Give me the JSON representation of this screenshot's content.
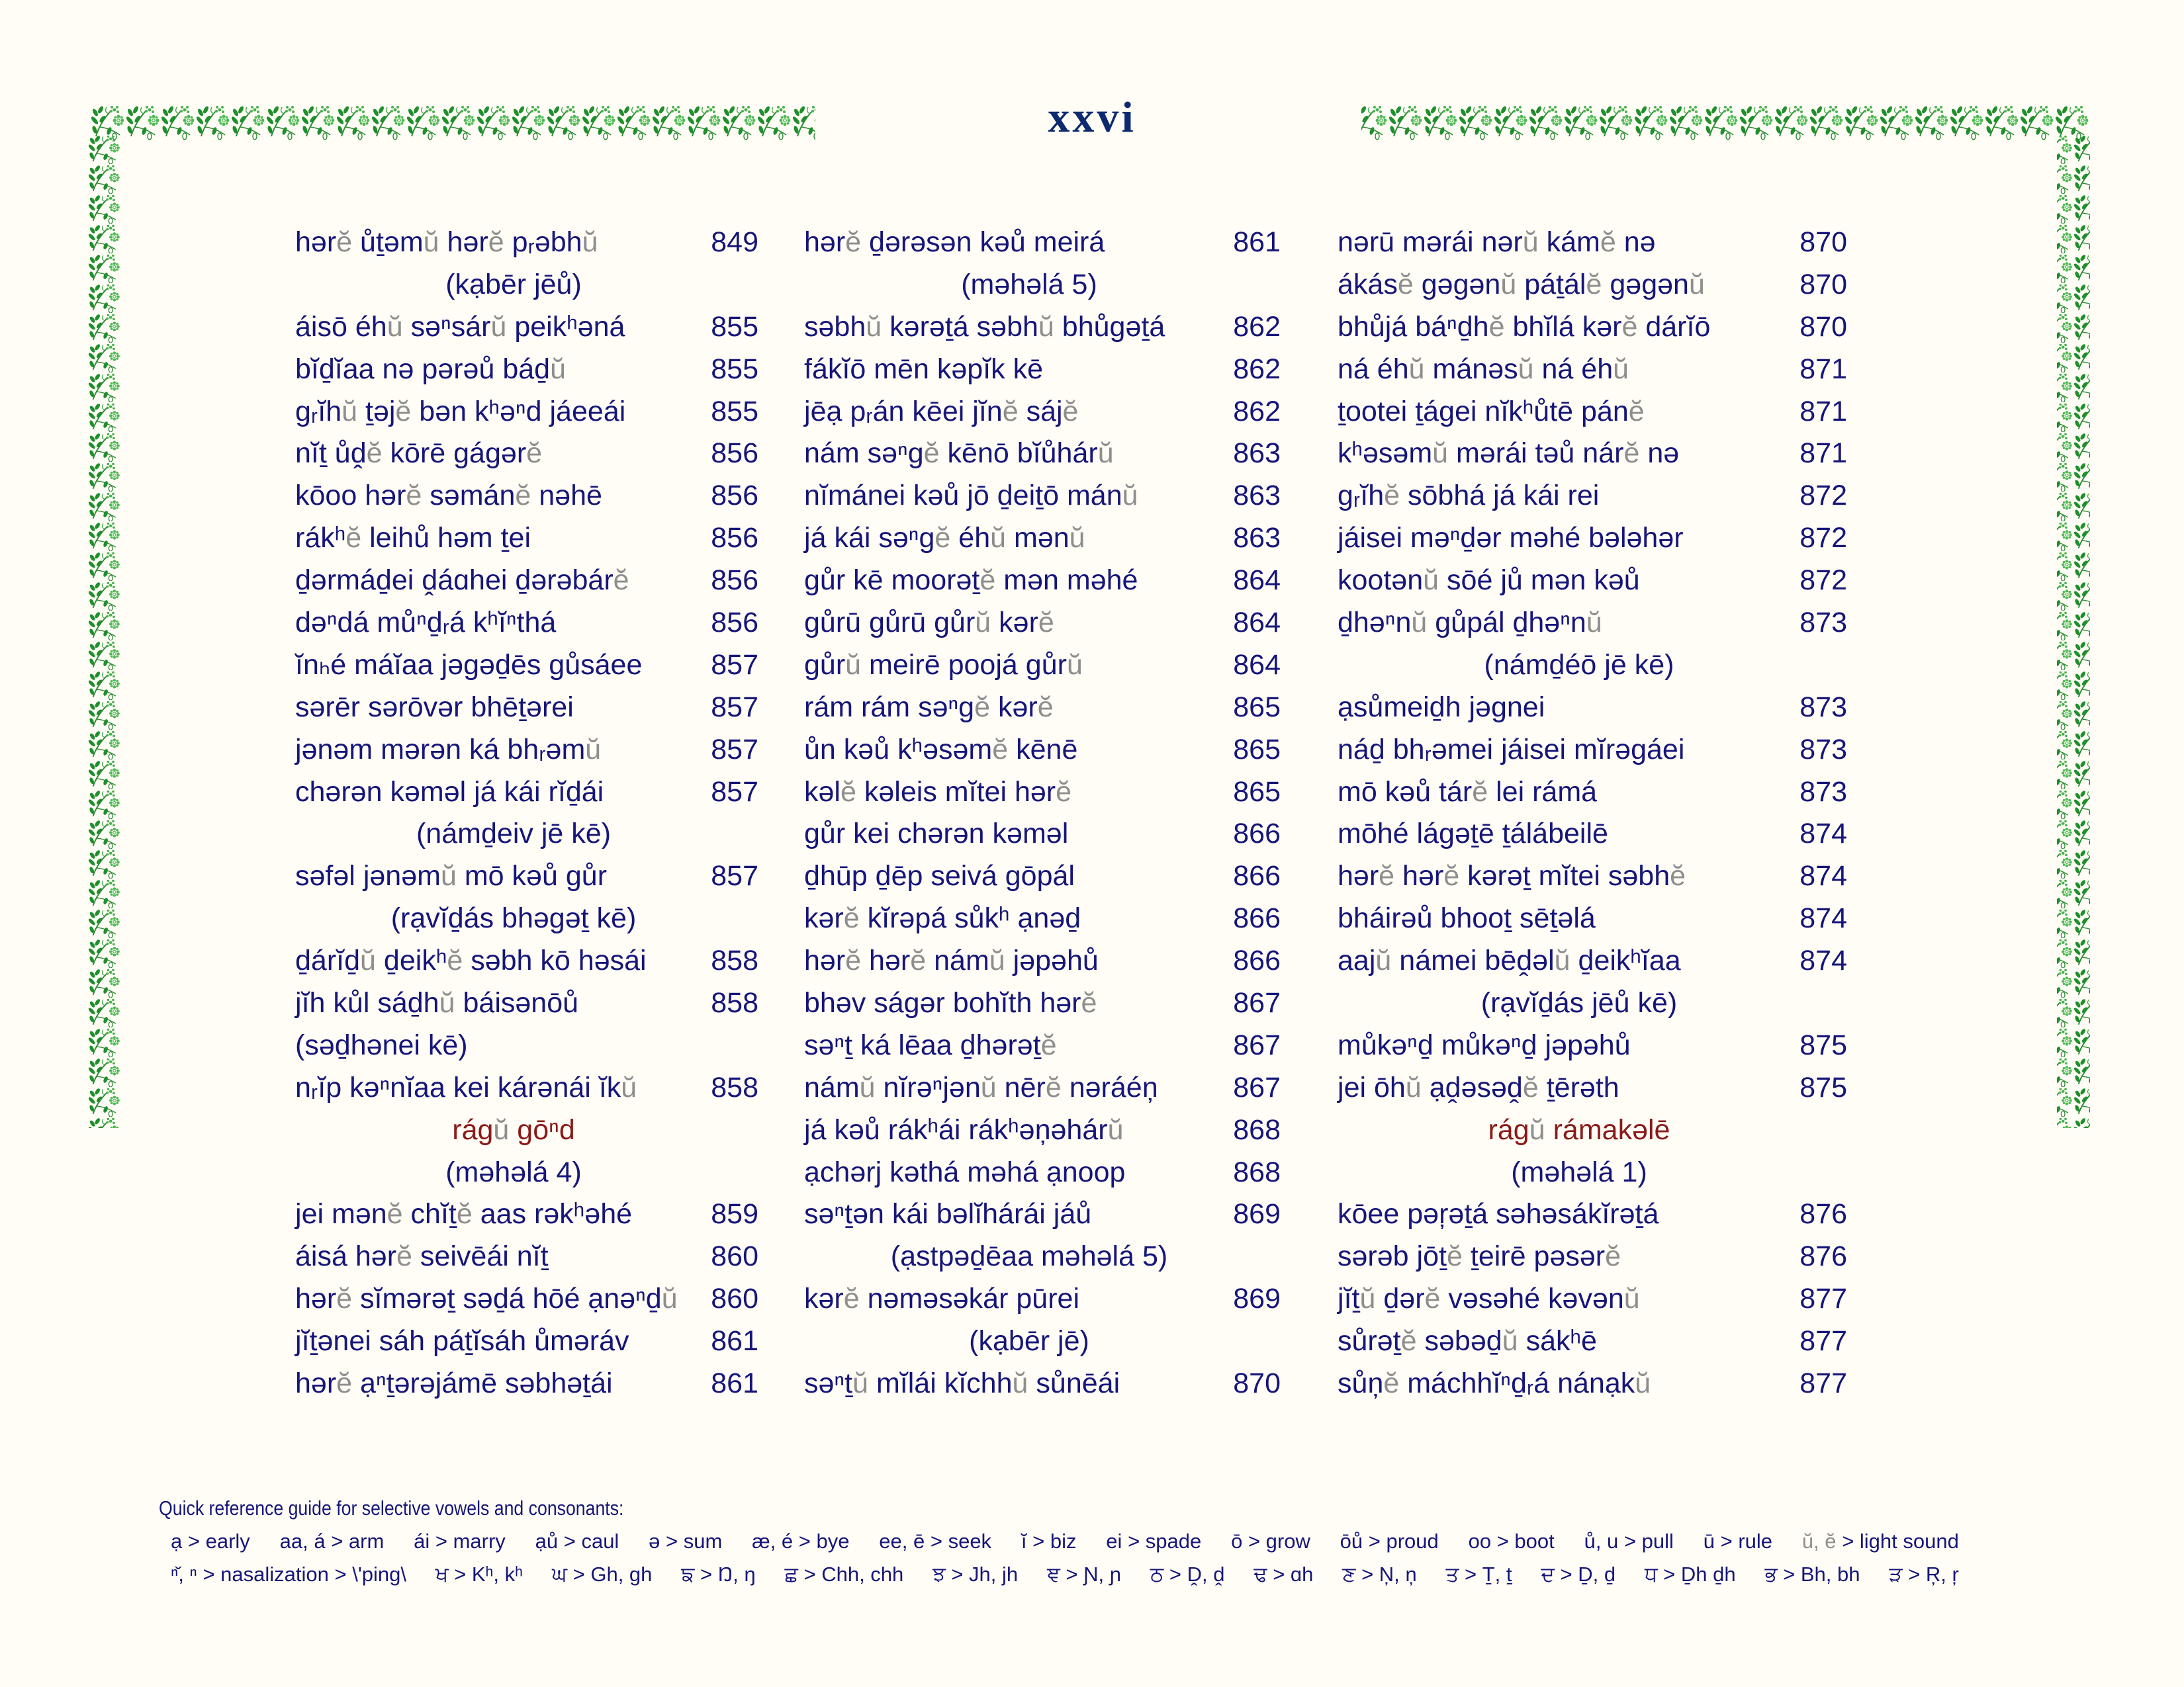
{
  "page_number": "xxvi",
  "colors": {
    "text": "#16167a",
    "light_sound": "#8e8e8e",
    "raag": "#8b1a1a",
    "ornament": "#2e9a3a",
    "title": "#0d2a6e"
  },
  "columns": [
    [
      {
        "type": "entry",
        "text": "hərĕ ůṯəmŭ hərĕ pᵣəbhŭ",
        "page": "849"
      },
      {
        "type": "heading",
        "text": "(kạbēr jēů)"
      },
      {
        "type": "entry",
        "text": "áisō éhŭ səⁿsárŭ peikʰəná",
        "page": "855"
      },
      {
        "type": "entry",
        "text": "bĭḏĭaa nə pərəů báḏŭ",
        "page": "855"
      },
      {
        "type": "entry",
        "text": "gᵣĭhŭ ṯəjĕ bən kʰəⁿd jáeeái",
        "page": "855"
      },
      {
        "type": "entry",
        "text": "nĭṯ ůḓĕ kōrē gágərĕ",
        "page": "856"
      },
      {
        "type": "entry",
        "text": "kōoo hərĕ səmánĕ nəhē",
        "page": "856"
      },
      {
        "type": "entry",
        "text": "rákʰĕ leihů həm ṯei",
        "page": "856"
      },
      {
        "type": "entry",
        "text": "ḏərmáḏei ḓáɑhei ḏərəbárĕ",
        "page": "856"
      },
      {
        "type": "entry",
        "text": "dəⁿdá můⁿḏᵣá kʰĭⁿthá",
        "page": "856"
      },
      {
        "type": "entry",
        "text": "ĭnₕé máĭaa jəgəḏēs gůsáee",
        "page": "857"
      },
      {
        "type": "entry",
        "text": "sərēr sərōvər bhēṯərei",
        "page": "857"
      },
      {
        "type": "entry",
        "text": "jənəm mərən ká bhᵣəmŭ",
        "page": "857"
      },
      {
        "type": "entry",
        "text": "chərən kəməl já kái rĭḏái",
        "page": "857"
      },
      {
        "type": "heading",
        "text": "(námḏeiv jē kē)"
      },
      {
        "type": "entry",
        "text": "səfəl jənəmŭ mō kəů gůr",
        "page": "857"
      },
      {
        "type": "heading",
        "text": "(rạvĭḏás bhəgəṯ kē)"
      },
      {
        "type": "entry",
        "text": "ḏárĭḏŭ ḏeikʰĕ səbh kō həsái",
        "page": "858"
      },
      {
        "type": "entry",
        "text": "jĭh kůl sáḏhŭ báisənōů",
        "page": "858"
      },
      {
        "type": "heading",
        "text": "(səḏhənei kē)",
        "align": "left"
      },
      {
        "type": "entry",
        "text": "nᵣĭp kəⁿnĭaa kei kárənái ĭkŭ",
        "page": "858"
      },
      {
        "type": "raag",
        "text": "rágŭ gōⁿd"
      },
      {
        "type": "heading",
        "text": "(məhəlá 4)"
      },
      {
        "type": "entry",
        "text": "jei mənĕ chĭṯĕ aas rəkʰəhé",
        "page": "859"
      },
      {
        "type": "entry",
        "text": "áisá hərĕ seivēái nĭṯ",
        "page": "860"
      },
      {
        "type": "entry",
        "text": "hərĕ sĭmərəṯ səḏá hōé ạnəⁿḏŭ",
        "page": "860"
      },
      {
        "type": "entry",
        "text": "jĭṯənei sáh páṯĭsáh ůməráv",
        "page": "861"
      },
      {
        "type": "entry",
        "text": "hərĕ ạⁿṯərəjámē səbhəṯái",
        "page": "861"
      }
    ],
    [
      {
        "type": "entry",
        "text": "hərĕ ḏərəsən kəů meirá",
        "page": "861"
      },
      {
        "type": "heading",
        "text": "(məhəlá 5)"
      },
      {
        "type": "entry",
        "text": "səbhŭ kərəṯá səbhŭ bhůgəṯá",
        "page": "862"
      },
      {
        "type": "entry",
        "text": "fákĭō mēn kəpĭk kē",
        "page": "862"
      },
      {
        "type": "entry",
        "text": "jēạ pᵣán kēei jĭnĕ sájĕ",
        "page": "862"
      },
      {
        "type": "entry",
        "text": "nám səⁿgĕ kēnō bĭůhárŭ",
        "page": "863"
      },
      {
        "type": "entry",
        "text": "nĭmánei kəů jō ḏeiṯō mánŭ",
        "page": "863"
      },
      {
        "type": "entry",
        "text": "já kái səⁿgĕ éhŭ mənŭ",
        "page": "863"
      },
      {
        "type": "entry",
        "text": "gůr kē moorəṯĕ mən məhé",
        "page": "864"
      },
      {
        "type": "entry",
        "text": "gůrū gůrū gůrŭ kərĕ",
        "page": "864"
      },
      {
        "type": "entry",
        "text": "gůrŭ meirē poojá gůrŭ",
        "page": "864"
      },
      {
        "type": "entry",
        "text": "rám rám səⁿgĕ kərĕ",
        "page": "865"
      },
      {
        "type": "entry",
        "text": "ůn kəů kʰəsəmĕ kēnē",
        "page": "865"
      },
      {
        "type": "entry",
        "text": "kəlĕ kəleis mĭtei hərĕ",
        "page": "865"
      },
      {
        "type": "entry",
        "text": "gůr kei chərən kəməl",
        "page": "866"
      },
      {
        "type": "entry",
        "text": "ḏhūp ḏēp seivá gōpál",
        "page": "866"
      },
      {
        "type": "entry",
        "text": "kərĕ kĭrəpá sůkʰ ạnəḏ",
        "page": "866"
      },
      {
        "type": "entry",
        "text": "hərĕ hərĕ námŭ jəpəhů",
        "page": "866"
      },
      {
        "type": "entry",
        "text": "bhəv ságər bohĭth hərĕ",
        "page": "867"
      },
      {
        "type": "entry",
        "text": "səⁿṯ ká lēaa ḏhərəṯĕ",
        "page": "867"
      },
      {
        "type": "entry",
        "text": "námŭ nĭrəⁿjənŭ nērĕ nəráéņ",
        "page": "867"
      },
      {
        "type": "entry",
        "text": "já kəů rákʰái rákʰəņəhárŭ",
        "page": "868"
      },
      {
        "type": "entry",
        "text": "ạchərj kəthá məhá ạnoop",
        "page": "868"
      },
      {
        "type": "entry",
        "text": "səⁿṯən kái bəlĭhárái jáů",
        "page": "869"
      },
      {
        "type": "heading",
        "text": "(ạstpəḏēaa məhəlá 5)"
      },
      {
        "type": "entry",
        "text": "kərĕ nəməsəkár pūrei",
        "page": "869"
      },
      {
        "type": "heading",
        "text": "(kạbēr jē)"
      },
      {
        "type": "entry",
        "text": "səⁿṯŭ mĭlái kĭchhŭ sůnēái",
        "page": "870"
      }
    ],
    [
      {
        "type": "entry",
        "text": "nərū mərái nərŭ kámĕ nə",
        "page": "870"
      },
      {
        "type": "entry",
        "text": "ákásĕ gəgənŭ páṯálĕ gəgənŭ",
        "page": "870"
      },
      {
        "type": "entry",
        "text": "bhůjá báⁿḏhĕ bhĭlá kərĕ dárĭō",
        "page": "870"
      },
      {
        "type": "entry",
        "text": "ná éhŭ mánəsŭ ná éhŭ",
        "page": "871"
      },
      {
        "type": "entry",
        "text": "ṯootei ṯágei nĭkʰůtē pánĕ",
        "page": "871"
      },
      {
        "type": "entry",
        "text": "kʰəsəmŭ mərái təů nárĕ nə",
        "page": "871"
      },
      {
        "type": "entry",
        "text": "gᵣĭhĕ sōbhá já kái rei",
        "page": "872"
      },
      {
        "type": "entry",
        "text": "jáisei məⁿḏər məhé bələhər",
        "page": "872"
      },
      {
        "type": "entry",
        "text": "kootənŭ sōé jů mən kəů",
        "page": "872"
      },
      {
        "type": "entry",
        "text": "ḏhəⁿnŭ gůpál ḏhəⁿnŭ",
        "page": "873"
      },
      {
        "type": "heading",
        "text": "(námḏéō jē kē)"
      },
      {
        "type": "entry",
        "text": "ạsůmeiḏh jəgnei",
        "page": "873"
      },
      {
        "type": "entry",
        "text": "náḏ bhᵣəmei jáisei mĭrəgáei",
        "page": "873"
      },
      {
        "type": "entry",
        "text": "mō kəů tárĕ lei rámá",
        "page": "873"
      },
      {
        "type": "entry",
        "text": "mōhé lágəṯē ṯálábeilē",
        "page": "874"
      },
      {
        "type": "entry",
        "text": "hərĕ hərĕ kərəṯ mĭtei səbhĕ",
        "page": "874"
      },
      {
        "type": "entry",
        "text": "bháirəů bhooṯ sēṯəlá",
        "page": "874"
      },
      {
        "type": "entry",
        "text": "aajŭ námei bēḓəlŭ ḏeikʰĭaa",
        "page": "874"
      },
      {
        "type": "heading",
        "text": "(rạvĭḏás jēů kē)"
      },
      {
        "type": "entry",
        "text": "můkəⁿḏ můkəⁿḏ jəpəhů",
        "page": "875"
      },
      {
        "type": "entry",
        "text": "jei ōhŭ ạḓəsəḓĕ ṯērəth",
        "page": "875"
      },
      {
        "type": "raag",
        "text": "rágŭ rámakəlē"
      },
      {
        "type": "heading",
        "text": "(məhəlá 1)"
      },
      {
        "type": "entry",
        "text": "kōee pəŗəṯá səhəsákĭrəṯá",
        "page": "876"
      },
      {
        "type": "entry",
        "text": "sərəb jōṯĕ ṯeirē pəsərĕ",
        "page": "876"
      },
      {
        "type": "entry",
        "text": "jĭṯŭ ḏərĕ vəsəhé kəvənŭ",
        "page": "877"
      },
      {
        "type": "entry",
        "text": "sůrəṯĕ səbəḏŭ sákʰē",
        "page": "877"
      },
      {
        "type": "entry",
        "text": "sůņĕ máchhĭⁿḏᵣá nánạkŭ",
        "page": "877"
      }
    ]
  ],
  "footer": {
    "title": "Quick reference guide for selective vowels and consonants:",
    "vowels": [
      {
        "key": "ạ",
        "value": "> early"
      },
      {
        "key": "aa, á",
        "value": "> arm"
      },
      {
        "key": "ái",
        "value": "> marry"
      },
      {
        "key": "ạů",
        "value": "> caul"
      },
      {
        "key": "ə",
        "value": "> sum"
      },
      {
        "key": "æ, é",
        "value": "> bye"
      },
      {
        "key": "ee, ē",
        "value": " > seek"
      },
      {
        "key": "ĭ",
        "value": "> biz"
      },
      {
        "key": "ei",
        "value": "> spade"
      },
      {
        "key": "ō",
        "value": "> grow"
      },
      {
        "key": "ōů",
        "value": "> proud"
      },
      {
        "key": "oo",
        "value": "> boot"
      },
      {
        "key": "ů, u",
        "value": "> pull"
      },
      {
        "key": "ū",
        "value": "> rule"
      },
      {
        "key": "ŭ, ĕ",
        "value": "> light sound",
        "grey": true
      }
    ],
    "consonants": [
      {
        "key": "ⁿ̌, ⁿ",
        "value": " > nasalization > \\'ping\\"
      },
      {
        "key": "ਖ",
        "value": "> Kʰ, kʰ"
      },
      {
        "key": "ਘ",
        "value": "> Gh, gh"
      },
      {
        "key": "ਙ",
        "value": "> Ŋ, ŋ"
      },
      {
        "key": "ਛ",
        "value": "> Chh, chh"
      },
      {
        "key": "ਝ",
        "value": "> Jh, jh"
      },
      {
        "key": "ਞ",
        "value": "> Ɲ, ɲ"
      },
      {
        "key": "ਠ",
        "value": "> Ḓ, ḓ"
      },
      {
        "key": "ਢ",
        "value": "> ɑh"
      },
      {
        "key": "ਣ",
        "value": "> Ņ, ņ"
      },
      {
        "key": "ਤ",
        "value": "> Ṯ, ṯ"
      },
      {
        "key": "ਦ",
        "value": "> Ḏ, ḏ"
      },
      {
        "key": "ਧ",
        "value": "> Ḏh  ḏh"
      },
      {
        "key": "ਭ",
        "value": " > Bh, bh"
      },
      {
        "key": "ੜ",
        "value": "> Ŗ, ŗ"
      }
    ]
  }
}
